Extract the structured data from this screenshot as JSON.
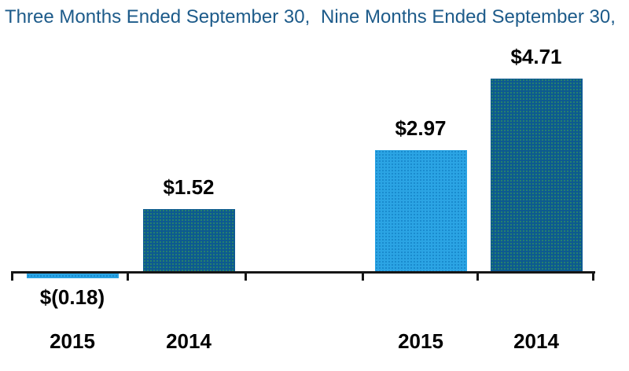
{
  "titles": {
    "left": "Three Months Ended September 30,",
    "right": "Nine Months Ended September 30,"
  },
  "colors": {
    "title_blue": "#1d5b8a",
    "bar_2015_fill": "#2ba4e4",
    "bar_2015_dot": "#1583c6",
    "bar_2014_fill": "#0d5a90",
    "bar_2014_dot": "#2f8c62",
    "axis": "#161616",
    "label_text": "#000000",
    "background": "#ffffff"
  },
  "chart_data": {
    "type": "bar",
    "title": "",
    "groups": [
      {
        "label": "Three Months Ended September 30,",
        "categories": [
          "2015",
          "2014"
        ],
        "values": [
          -0.18,
          1.52
        ]
      },
      {
        "label": "Nine Months Ended September 30,",
        "categories": [
          "2015",
          "2014"
        ],
        "values": [
          2.97,
          4.71
        ]
      }
    ],
    "bars": [
      {
        "group": "Three Months Ended September 30,",
        "year": "2015",
        "value": -0.18,
        "label": "$(0.18)",
        "fill": "#2ba4e4",
        "dot": "#1583c6"
      },
      {
        "group": "Three Months Ended September 30,",
        "year": "2014",
        "value": 1.52,
        "label": "$1.52",
        "fill": "#0d5a90",
        "dot": "#2f8c62"
      },
      {
        "group": "Nine Months Ended September 30,",
        "year": "2015",
        "value": 2.97,
        "label": "$2.97",
        "fill": "#2ba4e4",
        "dot": "#1583c6"
      },
      {
        "group": "Nine Months Ended September 30,",
        "year": "2014",
        "value": 4.71,
        "label": "$4.71",
        "fill": "#0d5a90",
        "dot": "#2f8c62"
      }
    ],
    "value_label_format": "accounting (negatives in parentheses)",
    "ylim": [
      -0.3,
      5.0
    ],
    "value_axis_visible": false,
    "grid": false,
    "legend": "none",
    "baseline": "x-axis drawn as solid black line with downward tick marks separating category slots"
  }
}
